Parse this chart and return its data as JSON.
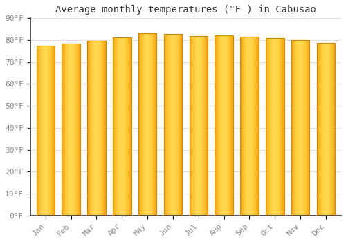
{
  "title": "Average monthly temperatures (°F ) in Cabusao",
  "months": [
    "Jan",
    "Feb",
    "Mar",
    "Apr",
    "May",
    "Jun",
    "Jul",
    "Aug",
    "Sep",
    "Oct",
    "Nov",
    "Dec"
  ],
  "values": [
    77.5,
    78.3,
    79.7,
    81.3,
    83.1,
    82.8,
    81.9,
    82.2,
    81.7,
    81.0,
    79.9,
    78.8
  ],
  "bar_color_center": "#FFD84D",
  "bar_color_edge": "#F5A000",
  "bar_outline_color": "#CC8800",
  "background_color": "#FFFFFF",
  "grid_color": "#E0E0E0",
  "title_fontsize": 10,
  "tick_fontsize": 8,
  "ylim": [
    0,
    90
  ],
  "yticks": [
    0,
    10,
    20,
    30,
    40,
    50,
    60,
    70,
    80,
    90
  ]
}
